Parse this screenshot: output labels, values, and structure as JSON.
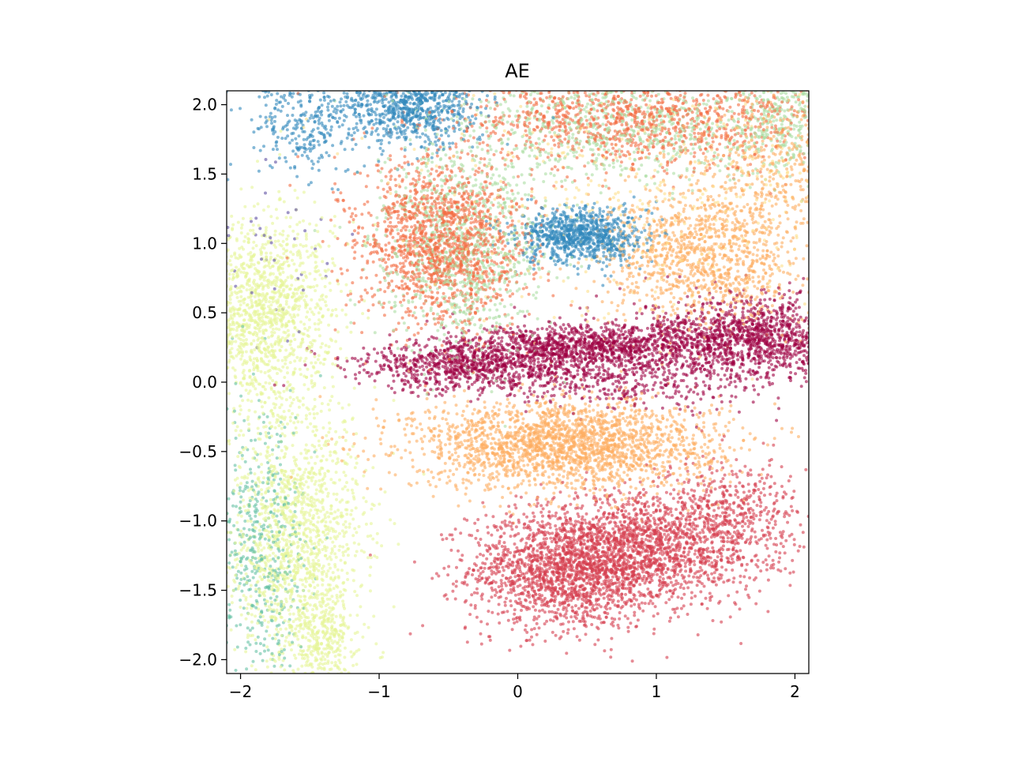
{
  "chart_data": {
    "type": "scatter",
    "title": "AE",
    "xlabel": "",
    "ylabel": "",
    "xlim": [
      -2.1,
      2.1
    ],
    "ylim": [
      -2.1,
      2.1
    ],
    "xticks": [
      -2,
      -1,
      0,
      1,
      2
    ],
    "yticks": [
      -2.0,
      -1.5,
      -1.0,
      -0.5,
      0.0,
      0.5,
      1.0,
      1.5,
      2.0
    ],
    "xtick_labels": [
      "−2",
      "−1",
      "0",
      "1",
      "2"
    ],
    "ytick_labels": [
      "−2.0",
      "−1.5",
      "−1.0",
      "−0.5",
      "0.0",
      "0.5",
      "1.0",
      "1.5",
      "2.0"
    ],
    "grid": false,
    "legend": "none",
    "colormap": "Spectral",
    "point_alpha": 0.6,
    "series": [
      {
        "color": "#d53e4f",
        "clusters": [
          {
            "center": [
              0.35,
              -1.35
            ],
            "spread": [
              0.35,
              0.22
            ],
            "n": 1700
          },
          {
            "center": [
              0.95,
              -1.2
            ],
            "spread": [
              0.4,
              0.2
            ],
            "n": 1400
          },
          {
            "center": [
              1.55,
              -0.95
            ],
            "spread": [
              0.25,
              0.2
            ],
            "n": 450
          }
        ]
      },
      {
        "color": "#fdae61",
        "clusters": [
          {
            "center": [
              0.35,
              -0.45
            ],
            "spread": [
              0.55,
              0.16
            ],
            "n": 2200
          },
          {
            "center": [
              1.35,
              0.9
            ],
            "spread": [
              0.35,
              0.25
            ],
            "n": 1100
          },
          {
            "center": [
              1.9,
              1.6
            ],
            "spread": [
              0.3,
              0.3
            ],
            "n": 450
          }
        ]
      },
      {
        "color": "#9e0142",
        "clusters": [
          {
            "center": [
              -0.3,
              0.12
            ],
            "spread": [
              0.45,
              0.09
            ],
            "n": 900
          },
          {
            "center": [
              0.5,
              0.27
            ],
            "spread": [
              0.45,
              0.07
            ],
            "n": 900
          },
          {
            "center": [
              1.7,
              0.32
            ],
            "spread": [
              0.4,
              0.15
            ],
            "n": 1400
          },
          {
            "center": [
              0.7,
              0.05
            ],
            "spread": [
              0.5,
              0.12
            ],
            "n": 500
          }
        ]
      },
      {
        "color": "#f46d43",
        "clusters": [
          {
            "center": [
              -0.55,
              1.0
            ],
            "spread": [
              0.3,
              0.3
            ],
            "n": 1600
          },
          {
            "center": [
              0.9,
              1.9
            ],
            "spread": [
              0.7,
              0.18
            ],
            "n": 1200
          }
        ]
      },
      {
        "color": "#abdda4",
        "clusters": [
          {
            "center": [
              -0.4,
              0.95
            ],
            "spread": [
              0.3,
              0.35
            ],
            "n": 900
          },
          {
            "center": [
              0.8,
              1.85
            ],
            "spread": [
              0.7,
              0.2
            ],
            "n": 800
          },
          {
            "center": [
              1.9,
              1.9
            ],
            "spread": [
              0.2,
              0.2
            ],
            "n": 300
          }
        ]
      },
      {
        "color": "#3288bd",
        "clusters": [
          {
            "center": [
              -0.8,
              2.0
            ],
            "spread": [
              0.25,
              0.15
            ],
            "n": 900
          },
          {
            "center": [
              -1.55,
              1.9
            ],
            "spread": [
              0.2,
              0.2
            ],
            "n": 300
          },
          {
            "center": [
              0.45,
              1.05
            ],
            "spread": [
              0.22,
              0.1
            ],
            "n": 900
          }
        ]
      },
      {
        "color": "#e6f598",
        "clusters": [
          {
            "center": [
              -1.85,
              0.5
            ],
            "spread": [
              0.25,
              0.35
            ],
            "n": 1400
          },
          {
            "center": [
              -1.6,
              -1.1
            ],
            "spread": [
              0.25,
              0.5
            ],
            "n": 1500
          },
          {
            "center": [
              -1.4,
              -1.85
            ],
            "spread": [
              0.12,
              0.2
            ],
            "n": 300
          }
        ]
      },
      {
        "color": "#66c2a5",
        "clusters": [
          {
            "center": [
              -1.85,
              -1.2
            ],
            "spread": [
              0.15,
              0.5
            ],
            "n": 450
          }
        ]
      },
      {
        "color": "#fee08b",
        "clusters": [
          {
            "center": [
              1.0,
              1.4
            ],
            "spread": [
              0.9,
              0.5
            ],
            "n": 500
          }
        ]
      },
      {
        "color": "#5e4fa2",
        "clusters": [
          {
            "center": [
              -1.8,
              1.0
            ],
            "spread": [
              0.3,
              0.4
            ],
            "n": 40
          }
        ]
      }
    ]
  }
}
